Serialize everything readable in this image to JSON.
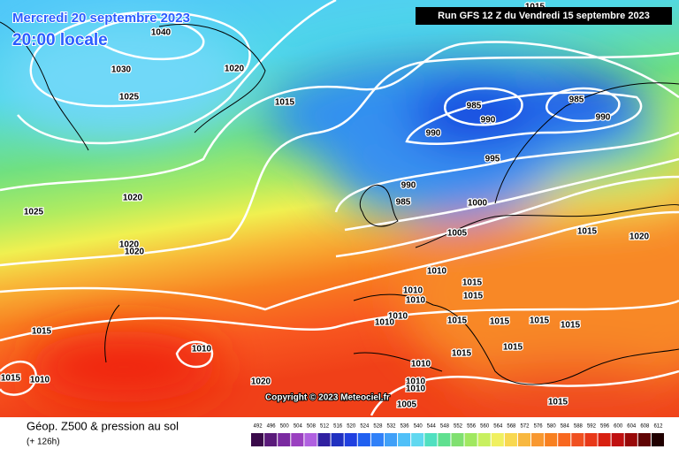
{
  "header": {
    "date": "Mercredi 20 septembre 2023",
    "time": "20:00 locale",
    "run": "Run GFS 12 Z du Vendredi 15 septembre 2023"
  },
  "isobar_labels": [
    "1040",
    "1030",
    "1020",
    "1025",
    "1015",
    "1015",
    "985",
    "990",
    "985",
    "990",
    "990",
    "995",
    "990",
    "985",
    "1000",
    "1020",
    "1025",
    "1005",
    "1015",
    "1020",
    "1020",
    "1020",
    "1010",
    "1015",
    "1015",
    "1010",
    "1010",
    "1010",
    "1010",
    "1015",
    "1015",
    "1015",
    "1015",
    "1015",
    "1015",
    "1015",
    "1010",
    "1015",
    "1010",
    "1010",
    "1020",
    "1005",
    "1015",
    "1010",
    "1010"
  ],
  "copyright": "Copyright © 2023 Meteociel.fr",
  "footer": {
    "title": "Géop. Z500 & pression au sol",
    "lead": "(+ 126h)"
  },
  "scale": {
    "values": [
      492,
      496,
      500,
      504,
      508,
      512,
      516,
      520,
      524,
      528,
      532,
      536,
      540,
      544,
      548,
      552,
      556,
      560,
      564,
      568,
      572,
      576,
      580,
      584,
      588,
      592,
      596,
      600,
      604,
      608,
      612
    ],
    "colors": [
      "#3a0a4a",
      "#5a1a7a",
      "#7a2aa0",
      "#9a40c0",
      "#b060e0",
      "#3020a0",
      "#2030c0",
      "#2040e0",
      "#2060f0",
      "#3080f8",
      "#40a0f8",
      "#50c0f8",
      "#60d8f0",
      "#50e0c0",
      "#60e090",
      "#80e070",
      "#a0e860",
      "#c8f060",
      "#f0f060",
      "#f8d850",
      "#f8b840",
      "#f89830",
      "#f88020",
      "#f86820",
      "#f05020",
      "#e83818",
      "#d82010",
      "#c01010",
      "#980808",
      "#600404",
      "#200000"
    ]
  }
}
